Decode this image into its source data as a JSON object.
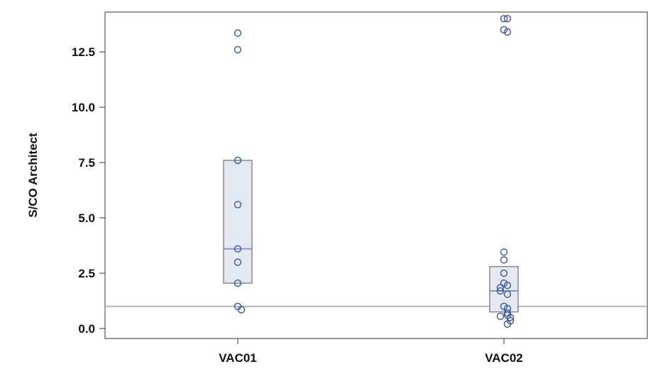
{
  "chart_data": {
    "type": "scatter",
    "ylabel": "S/CO Architect",
    "xlabel": "",
    "categories": [
      "VAC01",
      "VAC02"
    ],
    "ylim": [
      -0.45,
      14.3
    ],
    "yticks": [
      "0.0",
      "2.5",
      "5.0",
      "7.5",
      "10.0",
      "12.5"
    ],
    "reference_line": 1.0,
    "groups": [
      {
        "category": "VAC01",
        "box": {
          "q1": 2.05,
          "median": 3.6,
          "q3": 7.6
        },
        "points": [
          13.35,
          12.6,
          7.6,
          5.6,
          3.6,
          3.0,
          2.05,
          1.0,
          0.85
        ]
      },
      {
        "category": "VAC02",
        "box": {
          "q1": 0.75,
          "median": 1.7,
          "q3": 2.8
        },
        "points": [
          14.0,
          14.0,
          13.5,
          13.4,
          3.45,
          3.1,
          2.5,
          2.05,
          1.95,
          1.85,
          1.7,
          1.55,
          1.0,
          0.9,
          0.7,
          0.6,
          0.55,
          0.5,
          0.35,
          0.2
        ]
      }
    ],
    "colors": {
      "marker": "#3a55a8",
      "box_fill": "#e4e8f1",
      "box_stroke": "#8a8a8a",
      "median": "#8296bf",
      "reference_line": "#b8b8b8",
      "frame": "#555555"
    },
    "grid": false
  }
}
